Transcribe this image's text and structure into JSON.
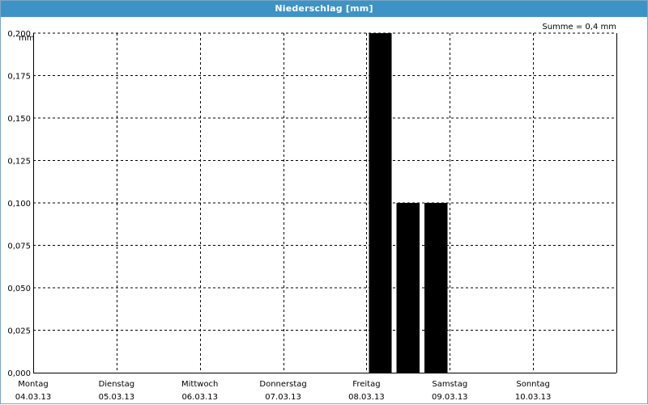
{
  "window": {
    "title": "Niederschlag [mm]"
  },
  "summary": {
    "text": "Summe = 0,4 mm"
  },
  "chart_data": {
    "type": "bar",
    "title": "Niederschlag [mm]",
    "ylabel": "mm",
    "ylim": [
      0,
      0.2
    ],
    "y_ticks": [
      "0,000",
      "0,025",
      "0,050",
      "0,075",
      "0,100",
      "0,125",
      "0,150",
      "0,175",
      "0,200"
    ],
    "x_range_days": [
      "04.03.13",
      "11.03.13"
    ],
    "day_labels": [
      {
        "day": "Montag",
        "date": "04.03.13"
      },
      {
        "day": "Dienstag",
        "date": "05.03.13"
      },
      {
        "day": "Mittwoch",
        "date": "06.03.13"
      },
      {
        "day": "Donnerstag",
        "date": "07.03.13"
      },
      {
        "day": "Freitag",
        "date": "08.03.13"
      },
      {
        "day": "Samstag",
        "date": "09.03.13"
      },
      {
        "day": "Sonntag",
        "date": "10.03.13"
      }
    ],
    "bars": [
      {
        "time": "08.03.13 00:00-08:00",
        "value": 0.2
      },
      {
        "time": "08.03.13 08:00-16:00",
        "value": 0.1
      },
      {
        "time": "08.03.13 16:00-24:00",
        "value": 0.1
      }
    ],
    "bar_color": "#000000",
    "grid": true,
    "grid_style": "dashed"
  }
}
